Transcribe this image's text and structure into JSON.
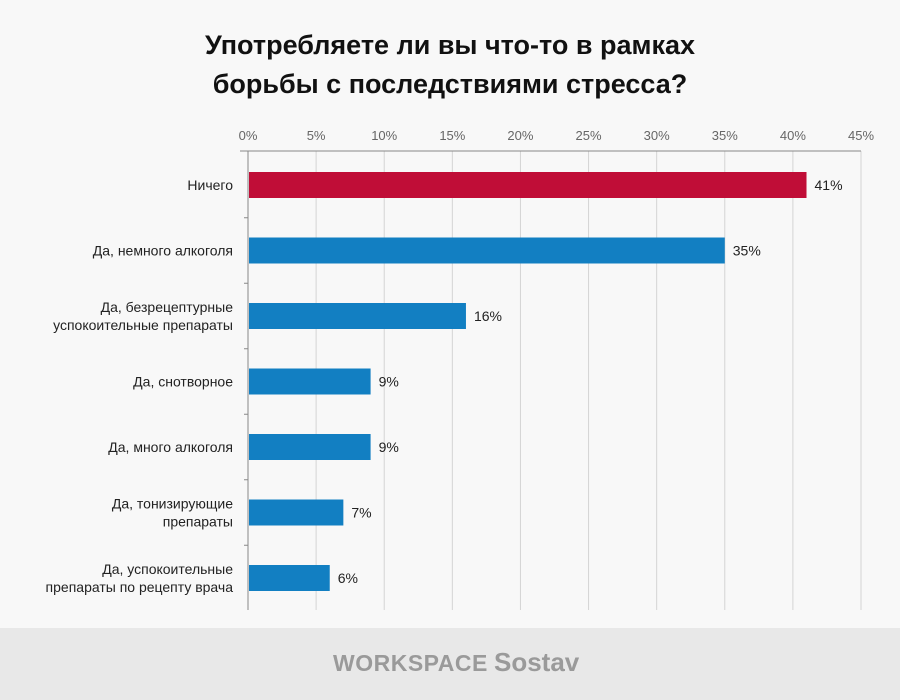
{
  "chart_data": {
    "type": "bar",
    "orientation": "horizontal",
    "title": "Употребляете ли вы что-то в рамках борьбы с последствиями стресса?",
    "title_lines": [
      "Употребляете ли вы что-то в рамках",
      "борьбы с последствиями стресса?"
    ],
    "categories": [
      [
        "Ничего"
      ],
      [
        "Да, немного алкоголя"
      ],
      [
        "Да, безрецептурные",
        "успокоительные препараты"
      ],
      [
        "Да, снотворное"
      ],
      [
        "Да, много алкоголя"
      ],
      [
        "Да, тонизирующие",
        "препараты"
      ],
      [
        "Да, успокоительные",
        "препараты по рецепту врача"
      ]
    ],
    "values": [
      41,
      35,
      16,
      9,
      9,
      7,
      6
    ],
    "value_labels": [
      "41%",
      "35%",
      "16%",
      "9%",
      "9%",
      "7%",
      "6%"
    ],
    "colors": [
      "#c00d37",
      "#127fc2",
      "#127fc2",
      "#127fc2",
      "#127fc2",
      "#127fc2",
      "#127fc2"
    ],
    "xlim": [
      0,
      45
    ],
    "xticks": [
      0,
      5,
      10,
      15,
      20,
      25,
      30,
      35,
      40,
      45
    ],
    "xtick_labels": [
      "0%",
      "5%",
      "10%",
      "15%",
      "20%",
      "25%",
      "30%",
      "35%",
      "40%",
      "45%"
    ],
    "grid": true,
    "xlabel": "",
    "ylabel": ""
  },
  "footer": {
    "logo_workspace": "WORKSPACE",
    "logo_sostav": "Sostav"
  }
}
